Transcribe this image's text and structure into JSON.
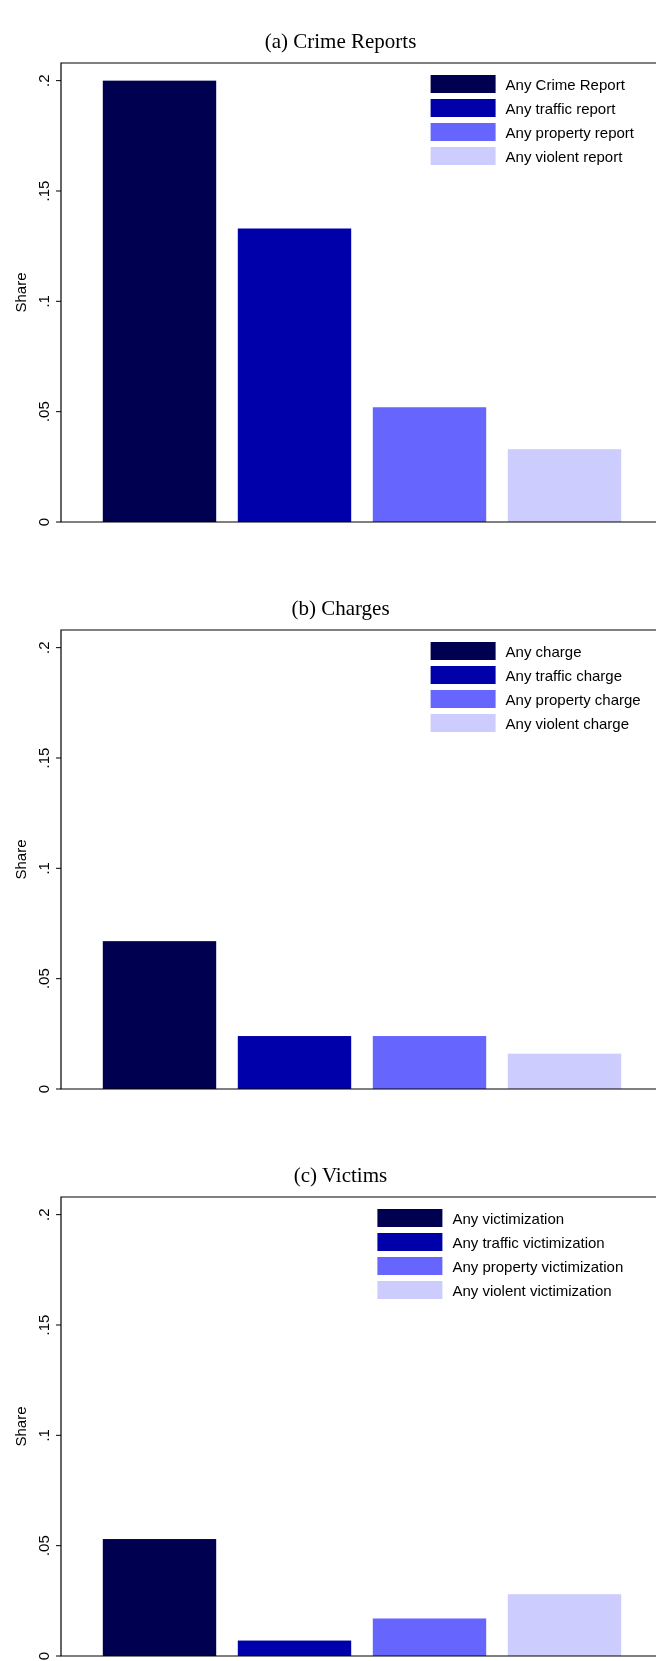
{
  "chart_data": [
    {
      "type": "bar",
      "title": "(a)  Crime Reports",
      "ylabel": "Share",
      "categories": [
        null
      ],
      "ylim": [
        0,
        0.208
      ],
      "yticks": [
        {
          "value": 0,
          "label": "0"
        },
        {
          "value": 0.05,
          "label": ".05"
        },
        {
          "value": 0.1,
          "label": ".1"
        },
        {
          "value": 0.15,
          "label": ".15"
        },
        {
          "value": 0.2,
          "label": ".2"
        }
      ],
      "legend": "top right",
      "grid": false,
      "series": [
        {
          "name": "Any Crime Report",
          "color": "#000050",
          "values": [
            0.2
          ]
        },
        {
          "name": "Any traffic report",
          "color": "#0000aa",
          "values": [
            0.133
          ]
        },
        {
          "name": "Any property report",
          "color": "#6666ff",
          "values": [
            0.052
          ]
        },
        {
          "name": "Any violent report",
          "color": "#ccccff",
          "values": [
            0.033
          ]
        }
      ]
    },
    {
      "type": "bar",
      "title": "(b)  Charges",
      "ylabel": "Share",
      "categories": [
        null
      ],
      "ylim": [
        0,
        0.208
      ],
      "yticks": [
        {
          "value": 0,
          "label": "0"
        },
        {
          "value": 0.05,
          "label": ".05"
        },
        {
          "value": 0.1,
          "label": ".1"
        },
        {
          "value": 0.15,
          "label": ".15"
        },
        {
          "value": 0.2,
          "label": ".2"
        }
      ],
      "legend": "top right",
      "grid": false,
      "series": [
        {
          "name": "Any charge",
          "color": "#000050",
          "values": [
            0.067
          ]
        },
        {
          "name": "Any traffic charge",
          "color": "#0000aa",
          "values": [
            0.024
          ]
        },
        {
          "name": "Any property charge",
          "color": "#6666ff",
          "values": [
            0.024
          ]
        },
        {
          "name": "Any violent charge",
          "color": "#ccccff",
          "values": [
            0.016
          ]
        }
      ]
    },
    {
      "type": "bar",
      "title": "(c)  Victims",
      "ylabel": "Share",
      "categories": [
        null
      ],
      "ylim": [
        0,
        0.208
      ],
      "yticks": [
        {
          "value": 0,
          "label": "0"
        },
        {
          "value": 0.05,
          "label": ".05"
        },
        {
          "value": 0.1,
          "label": ".1"
        },
        {
          "value": 0.15,
          "label": ".15"
        },
        {
          "value": 0.2,
          "label": ".2"
        }
      ],
      "legend": "top right",
      "grid": false,
      "series": [
        {
          "name": "Any victimization",
          "color": "#000050",
          "values": [
            0.053
          ]
        },
        {
          "name": "Any traffic victimization",
          "color": "#0000aa",
          "values": [
            0.007
          ]
        },
        {
          "name": "Any property victimization",
          "color": "#6666ff",
          "values": [
            0.017
          ]
        },
        {
          "name": "Any violent victimization",
          "color": "#ccccff",
          "values": [
            0.028
          ]
        }
      ]
    }
  ]
}
